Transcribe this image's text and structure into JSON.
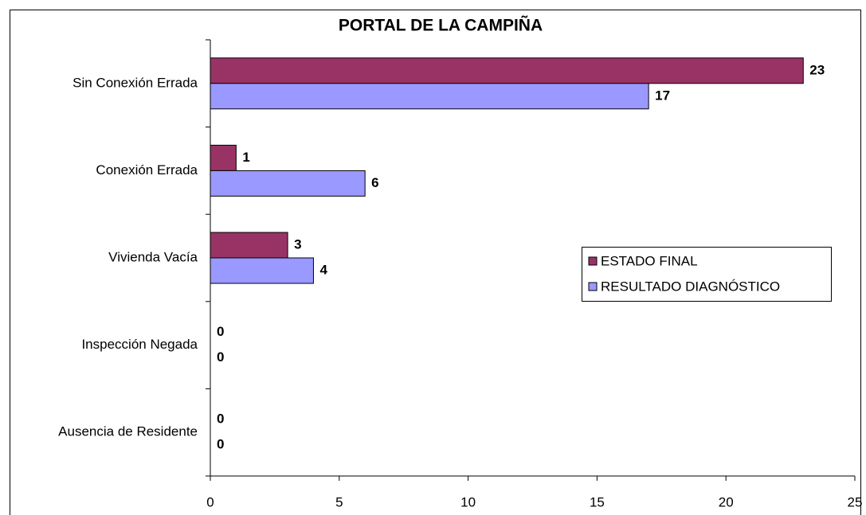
{
  "chart_data": {
    "type": "barh",
    "title": "PORTAL DE LA CAMPIÑA",
    "categories": [
      "Sin Conexión Errada",
      "Conexión Errada",
      "Vivienda Vacía",
      "Inspección Negada",
      "Ausencia de Residente"
    ],
    "series": [
      {
        "name": "ESTADO FINAL",
        "color": "#993366",
        "values": [
          23,
          1,
          3,
          0,
          0
        ]
      },
      {
        "name": "RESULTADO DIAGNÓSTICO",
        "color": "#9999ff",
        "values": [
          17,
          6,
          4,
          0,
          0
        ]
      }
    ],
    "xlim": [
      0,
      25
    ],
    "xticks": [
      0,
      5,
      10,
      15,
      20,
      25
    ],
    "legend": "right",
    "grid": false
  }
}
